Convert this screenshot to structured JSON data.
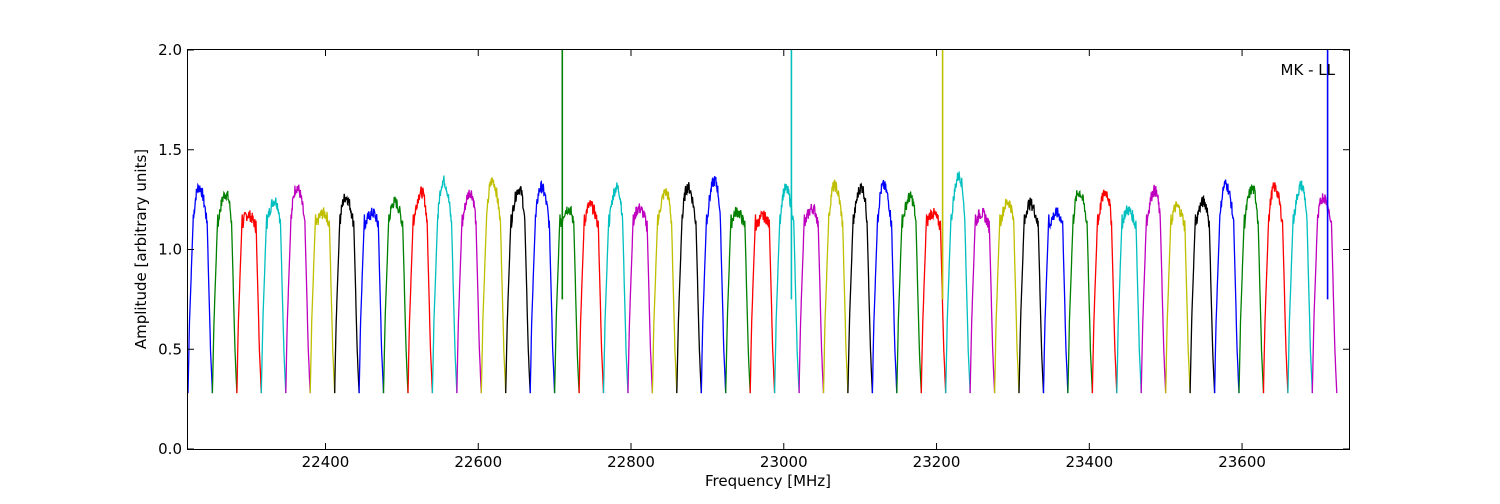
{
  "chart_data": {
    "type": "line",
    "xlabel": "Frequency [MHz]",
    "ylabel": "Amplitude [arbitrary units]",
    "annotation": "MK - LL",
    "xlim": [
      22220,
      23740
    ],
    "ylim": [
      0.0,
      2.0
    ],
    "xticks": [
      22400,
      22600,
      22800,
      23000,
      23200,
      23400,
      23600
    ],
    "xtick_labels": [
      "22400",
      "22600",
      "22800",
      "23000",
      "23200",
      "23400",
      "23600"
    ],
    "yticks": [
      0.0,
      0.5,
      1.0,
      1.5,
      2.0
    ],
    "ytick_labels": [
      "0.0",
      "0.5",
      "1.0",
      "1.5",
      "2.0"
    ],
    "grid": false,
    "legend": "none",
    "colors": [
      "#0000ff",
      "#008000",
      "#ff0000",
      "#00bfbf",
      "#bf00bf",
      "#bfbf00",
      "#000000"
    ],
    "sub_bands": {
      "start_mhz": 22220,
      "width_mhz": 32,
      "count": 47,
      "peaks": [
        1.36,
        1.32,
        1.19,
        1.28,
        1.36,
        1.2,
        1.3,
        1.2,
        1.27,
        1.33,
        1.4,
        1.33,
        1.4,
        1.35,
        1.36,
        1.23,
        1.25,
        1.36,
        1.23,
        1.33,
        1.36,
        1.4,
        1.21,
        1.18,
        1.35,
        1.23,
        1.37,
        1.36,
        1.37,
        1.3,
        1.2,
        1.43,
        1.2,
        1.27,
        1.26,
        1.2,
        1.33,
        1.33,
        1.22,
        1.34,
        1.24,
        1.27,
        1.38,
        1.35,
        1.36,
        1.37,
        1.3
      ],
      "plateau": 1.15,
      "minimum": 0.28
    },
    "spikes": [
      {
        "x": 22710,
        "y": 2.0,
        "color": "#008000"
      },
      {
        "x": 23010,
        "y": 2.0,
        "color": "#00bfbf"
      },
      {
        "x": 23208,
        "y": 2.0,
        "color": "#bfbf00"
      },
      {
        "x": 23712,
        "y": 2.0,
        "color": "#0000ff"
      }
    ]
  }
}
